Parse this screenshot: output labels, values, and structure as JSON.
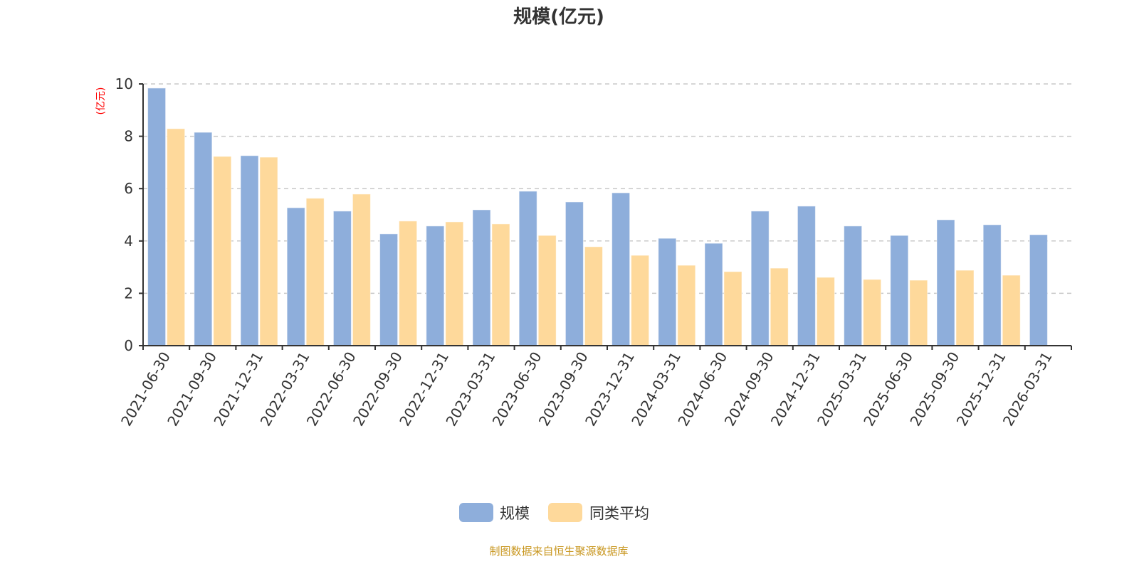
{
  "chart_data": {
    "type": "bar",
    "title": "规模(亿元)",
    "ylabel": "(亿元)",
    "xlabel": "",
    "ylim": [
      0,
      10
    ],
    "yticks": [
      0,
      2,
      4,
      6,
      8,
      10
    ],
    "grid": true,
    "legend_position": "bottom",
    "categories": [
      "2021-06-30",
      "2021-09-30",
      "2021-12-31",
      "2022-03-31",
      "2022-06-30",
      "2022-09-30",
      "2022-12-31",
      "2023-03-31",
      "2023-06-30",
      "2023-09-30",
      "2023-12-31",
      "2024-03-31",
      "2024-06-30",
      "2024-09-30",
      "2024-12-31",
      "2025-03-31",
      "2025-06-30",
      "2025-09-30",
      "2025-12-31",
      "2026-03-31"
    ],
    "series": [
      {
        "name": "规模",
        "color": "#8eaedb",
        "values": [
          9.84,
          8.15,
          7.26,
          5.27,
          5.14,
          4.27,
          4.57,
          5.19,
          5.9,
          5.49,
          5.84,
          4.1,
          3.91,
          5.14,
          5.33,
          4.57,
          4.21,
          4.81,
          4.62,
          4.24
        ]
      },
      {
        "name": "同类平均",
        "color": "#fed99b",
        "values": [
          8.29,
          7.23,
          7.2,
          5.63,
          5.79,
          4.76,
          4.73,
          4.65,
          4.21,
          3.78,
          3.45,
          3.07,
          2.83,
          2.96,
          2.61,
          2.53,
          2.5,
          2.88,
          2.69,
          null
        ]
      }
    ]
  },
  "source": "制图数据来自恒生聚源数据库"
}
